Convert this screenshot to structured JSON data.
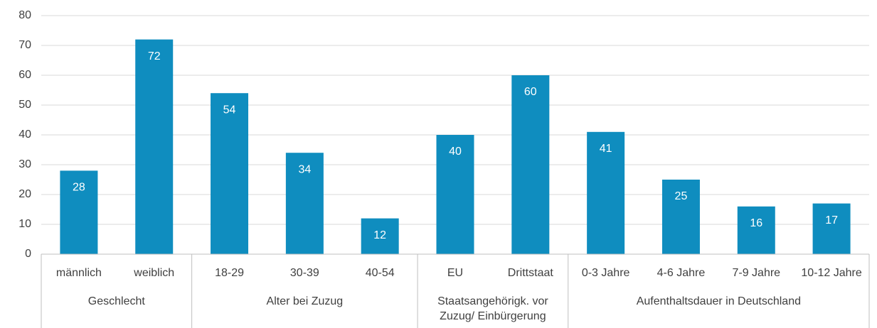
{
  "chart_data": {
    "type": "bar",
    "color": "#0f8dbf",
    "grid": true,
    "ylim": [
      0,
      80
    ],
    "yticks": [
      0,
      10,
      20,
      30,
      40,
      50,
      60,
      70,
      80
    ],
    "groups": [
      {
        "name": "Geschlecht",
        "categories": [
          "männlich",
          "weiblich"
        ],
        "values": [
          28,
          72
        ]
      },
      {
        "name": "Alter bei Zuzug",
        "categories": [
          "18-29",
          "30-39",
          "40-54"
        ],
        "values": [
          54,
          34,
          12
        ]
      },
      {
        "name": "Staatsangehörigk. vor Zuzug/ Einbürgerung",
        "categories": [
          "EU",
          "Drittstaat"
        ],
        "values": [
          40,
          60
        ]
      },
      {
        "name": "Aufenthaltsdauer in Deutschland",
        "categories": [
          "0-3 Jahre",
          "4-6 Jahre",
          "7-9 Jahre",
          "10-12 Jahre"
        ],
        "values": [
          41,
          25,
          16,
          17
        ]
      }
    ]
  }
}
